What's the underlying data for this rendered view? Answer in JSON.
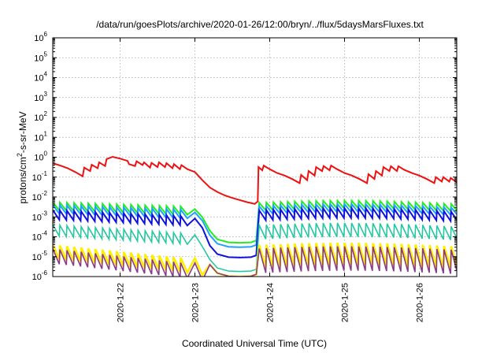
{
  "chart_data": {
    "type": "line",
    "title": "/data/run/goesPlots/archive/2020-01-26/12:00/bryn/../flux/5daysMarsFluxes.txt",
    "xlabel": "Coordinated Universal Time (UTC)",
    "ylabel_parts": [
      "protons/cm",
      "2",
      "-s-sr-MeV"
    ],
    "x_ticks": [
      "2020-1-22",
      "2020-1-23",
      "2020-1-24",
      "2020-1-25",
      "2020-1-26"
    ],
    "x_tick_days": [
      22,
      23,
      24,
      25,
      26
    ],
    "xlim": [
      21.1,
      26.5
    ],
    "y_scale": "log",
    "ylim": [
      1e-06,
      1000000.0
    ],
    "y_ticks": [
      {
        "base": "10",
        "exp": "-6"
      },
      {
        "base": "10",
        "exp": "-5"
      },
      {
        "base": "10",
        "exp": "-4"
      },
      {
        "base": "10",
        "exp": "-3"
      },
      {
        "base": "10",
        "exp": "-2"
      },
      {
        "base": "10",
        "exp": "-1"
      },
      {
        "base": "10",
        "exp": "0"
      },
      {
        "base": "10",
        "exp": "1"
      },
      {
        "base": "10",
        "exp": "2"
      },
      {
        "base": "10",
        "exp": "3"
      },
      {
        "base": "10",
        "exp": "4"
      },
      {
        "base": "10",
        "exp": "5"
      },
      {
        "base": "10",
        "exp": "6"
      }
    ],
    "grid": true,
    "series": [
      {
        "color": "#ee1111",
        "width": 2.0,
        "points": [
          [
            21.1,
            0.5
          ],
          [
            21.2,
            0.38
          ],
          [
            21.3,
            0.28
          ],
          [
            21.4,
            0.18
          ],
          [
            21.5,
            0.11
          ],
          [
            21.52,
            0.3
          ],
          [
            21.6,
            0.2
          ],
          [
            21.62,
            0.42
          ],
          [
            21.7,
            0.28
          ],
          [
            21.72,
            0.55
          ],
          [
            21.8,
            0.36
          ],
          [
            21.82,
            0.8
          ],
          [
            21.9,
            1.05
          ],
          [
            22.0,
            0.85
          ],
          [
            22.1,
            0.65
          ],
          [
            22.12,
            0.45
          ],
          [
            22.2,
            0.36
          ],
          [
            22.22,
            0.62
          ],
          [
            22.3,
            0.4
          ],
          [
            22.32,
            0.55
          ],
          [
            22.4,
            0.3
          ],
          [
            22.42,
            0.52
          ],
          [
            22.5,
            0.32
          ],
          [
            22.52,
            0.55
          ],
          [
            22.6,
            0.32
          ],
          [
            22.62,
            0.5
          ],
          [
            22.7,
            0.28
          ],
          [
            22.72,
            0.45
          ],
          [
            22.8,
            0.25
          ],
          [
            22.82,
            0.4
          ],
          [
            22.9,
            0.25
          ],
          [
            23.0,
            0.18
          ],
          [
            23.1,
            0.07
          ],
          [
            23.2,
            0.03
          ],
          [
            23.3,
            0.018
          ],
          [
            23.4,
            0.012
          ],
          [
            23.5,
            0.009
          ],
          [
            23.6,
            0.007
          ],
          [
            23.7,
            0.0055
          ],
          [
            23.75,
            0.005
          ],
          [
            23.8,
            0.0045
          ],
          [
            23.84,
            0.006
          ],
          [
            23.85,
            0.32
          ],
          [
            23.9,
            0.22
          ],
          [
            23.92,
            0.38
          ],
          [
            24.0,
            0.25
          ],
          [
            24.1,
            0.16
          ],
          [
            24.2,
            0.12
          ],
          [
            24.3,
            0.08
          ],
          [
            24.4,
            0.05
          ],
          [
            24.42,
            0.13
          ],
          [
            24.5,
            0.07
          ],
          [
            24.52,
            0.2
          ],
          [
            24.6,
            0.12
          ],
          [
            24.62,
            0.32
          ],
          [
            24.7,
            0.2
          ],
          [
            24.72,
            0.36
          ],
          [
            24.8,
            0.22
          ],
          [
            24.82,
            0.38
          ],
          [
            24.9,
            0.25
          ],
          [
            25.0,
            0.16
          ],
          [
            25.1,
            0.12
          ],
          [
            25.2,
            0.08
          ],
          [
            25.3,
            0.05
          ],
          [
            25.32,
            0.14
          ],
          [
            25.4,
            0.08
          ],
          [
            25.42,
            0.2
          ],
          [
            25.5,
            0.12
          ],
          [
            25.52,
            0.32
          ],
          [
            25.6,
            0.2
          ],
          [
            25.62,
            0.35
          ],
          [
            25.7,
            0.2
          ],
          [
            25.72,
            0.35
          ],
          [
            25.8,
            0.23
          ],
          [
            25.9,
            0.16
          ],
          [
            26.0,
            0.12
          ],
          [
            26.1,
            0.08
          ],
          [
            26.2,
            0.05
          ],
          [
            26.22,
            0.1
          ],
          [
            26.3,
            0.06
          ],
          [
            26.32,
            0.1
          ],
          [
            26.4,
            0.06
          ],
          [
            26.42,
            0.09
          ],
          [
            26.5,
            0.055
          ],
          [
            26.52,
            0.14
          ]
        ]
      }
    ],
    "band_series": [
      {
        "color": "#22ee22",
        "width": 2.0,
        "early": [
          0.0055,
          0.0035,
          0.0024
        ],
        "late": [
          0.006,
          0.004,
          0.0025
        ],
        "valley": 5e-05,
        "tail_from": 23.82
      },
      {
        "color": "#22a0ff",
        "width": 2.0,
        "early": [
          0.004,
          0.0024,
          0.0016
        ],
        "late": [
          0.004,
          0.0026,
          0.0016
        ],
        "valley": 3e-05,
        "tail_from": 23.82
      },
      {
        "color": "#1111dd",
        "width": 2.0,
        "early": [
          0.0022,
          0.0012,
          0.0007
        ],
        "late": [
          0.0025,
          0.0014,
          0.0008
        ],
        "valley": 9e-06,
        "tail_from": 23.82
      },
      {
        "color": "#22c8a0",
        "width": 1.6,
        "early": [
          0.0004,
          0.00018,
          8e-05
        ],
        "late": [
          0.00045,
          0.0002,
          9e-05
        ],
        "valley": 1.8e-06,
        "tail_from": 23.82
      },
      {
        "color": "#ffee00",
        "width": 2.6,
        "early": [
          4e-05,
          1.2e-05,
          3e-06
        ],
        "late": [
          4.5e-05,
          1.4e-05,
          3.5e-06
        ],
        "valley": 1e-06,
        "tail_from": 23.82
      },
      {
        "color": "#8b3a8b",
        "width": 1.6,
        "early": [
          2.5e-05,
          7e-06,
          1.6e-06
        ],
        "late": [
          3e-05,
          8e-06,
          1.8e-06
        ],
        "valley": 1e-06,
        "tail_from": 23.82
      }
    ]
  }
}
